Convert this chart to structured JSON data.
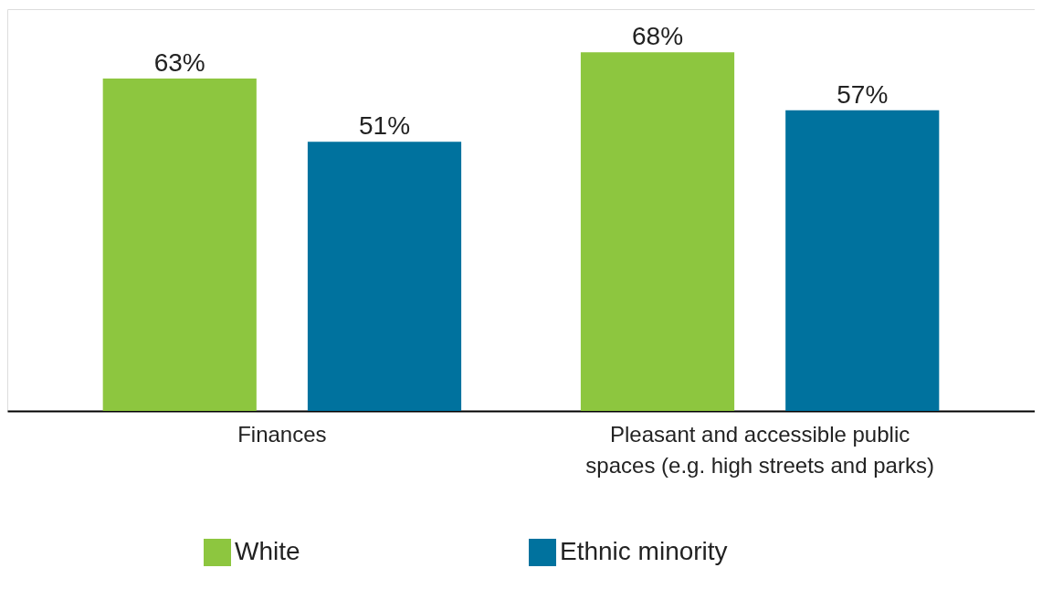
{
  "chart_data": {
    "type": "bar",
    "categories": [
      "Finances",
      "Pleasant and accessible public spaces (e.g. high streets and parks)"
    ],
    "legend": "bottom",
    "series": [
      {
        "name": "White",
        "color": "#8dc63f",
        "values": [
          63,
          68
        ],
        "value_labels": [
          "63%",
          "68%"
        ]
      },
      {
        "name": "Ethnic minority",
        "color": "#00729e",
        "values": [
          51,
          57
        ],
        "value_labels": [
          "51%",
          "57%"
        ]
      }
    ]
  }
}
